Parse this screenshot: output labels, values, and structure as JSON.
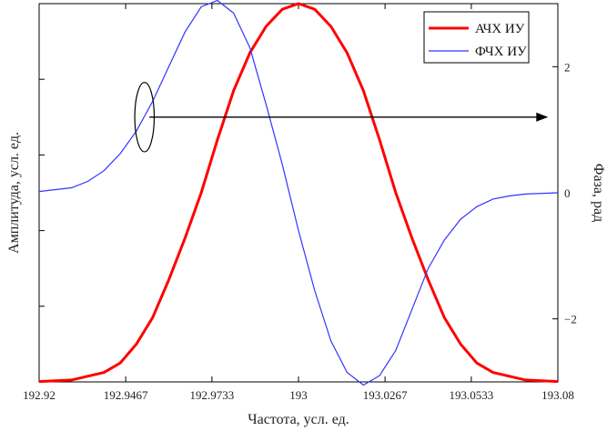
{
  "chart_data": {
    "type": "line",
    "title": "",
    "xlabel": "Частота, усл. ед.",
    "ylabel_left": "Амплитуда, усл. ед.",
    "ylabel_right": "Фаза, рад",
    "xlim": [
      192.92,
      193.08
    ],
    "ylim_left": [
      0,
      1
    ],
    "ylim_right": [
      -3,
      3
    ],
    "x_ticks": [
      192.92,
      192.9467,
      192.9733,
      193,
      193.0267,
      193.0533,
      193.08
    ],
    "x_tick_labels": [
      "192.92",
      "192.9467",
      "192.9733",
      "193",
      "193.0267",
      "193.0533",
      "193.08"
    ],
    "y_right_ticks": [
      -2,
      0,
      2
    ],
    "y_right_tick_labels": [
      "−2",
      "0",
      "2"
    ],
    "y_left_ticks": [
      0.2,
      0.4,
      0.6,
      0.8
    ],
    "grid": false,
    "legend_position": "top-right",
    "series": [
      {
        "name": "АЧХ ИУ",
        "axis": "left",
        "color": "#ff0000",
        "x": [
          192.92,
          192.93,
          192.94,
          192.945,
          192.95,
          192.955,
          192.96,
          192.965,
          192.97,
          192.975,
          192.98,
          192.985,
          192.99,
          192.995,
          193.0,
          193.005,
          193.01,
          193.015,
          193.02,
          193.025,
          193.03,
          193.035,
          193.04,
          193.045,
          193.05,
          193.055,
          193.06,
          193.07,
          193.08
        ],
        "values": [
          0.001,
          0.005,
          0.025,
          0.05,
          0.1,
          0.17,
          0.27,
          0.38,
          0.5,
          0.64,
          0.77,
          0.87,
          0.94,
          0.985,
          1.0,
          0.985,
          0.94,
          0.87,
          0.77,
          0.64,
          0.5,
          0.38,
          0.27,
          0.17,
          0.1,
          0.05,
          0.025,
          0.005,
          0.001
        ]
      },
      {
        "name": "ФЧХ ИУ",
        "axis": "right",
        "color": "#3333ff",
        "x": [
          192.92,
          192.93,
          192.935,
          192.94,
          192.945,
          192.95,
          192.955,
          192.96,
          192.965,
          192.97,
          192.975,
          192.98,
          192.985,
          192.99,
          192.995,
          193.0,
          193.005,
          193.01,
          193.015,
          193.02,
          193.025,
          193.03,
          193.035,
          193.04,
          193.045,
          193.05,
          193.055,
          193.06,
          193.065,
          193.07,
          193.08
        ],
        "values": [
          0.02,
          0.08,
          0.18,
          0.35,
          0.62,
          0.98,
          1.45,
          2.0,
          2.55,
          2.95,
          3.05,
          2.85,
          2.3,
          1.4,
          0.45,
          -0.6,
          -1.55,
          -2.35,
          -2.85,
          -3.05,
          -2.9,
          -2.5,
          -1.85,
          -1.2,
          -0.75,
          -0.42,
          -0.22,
          -0.1,
          -0.05,
          -0.02,
          0.0
        ]
      }
    ],
    "annotations": [
      {
        "type": "ellipse",
        "center": [
          192.9525,
          1.2
        ],
        "rx_data": 0.003,
        "ry_data": 0.55,
        "axis": "right"
      },
      {
        "type": "arrow",
        "from": [
          192.954,
          1.2
        ],
        "to": [
          193.077,
          1.2
        ],
        "axis": "right"
      }
    ]
  }
}
